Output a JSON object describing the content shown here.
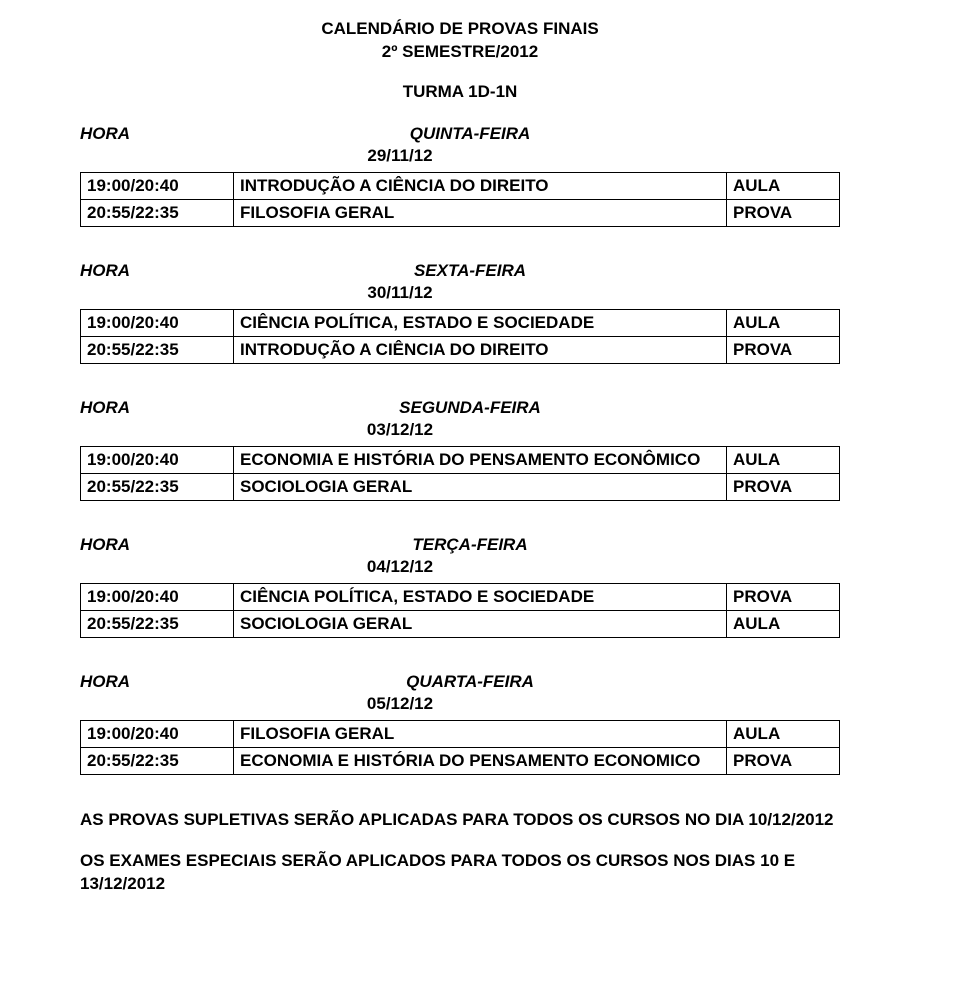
{
  "header": {
    "title_line1": "CALENDÁRIO DE PROVAS FINAIS",
    "title_line2": "2º SEMESTRE/2012",
    "turma": "TURMA 1D-1N"
  },
  "labels": {
    "hora": "HORA"
  },
  "blocks": [
    {
      "day_label": "QUINTA-FEIRA",
      "date": "29/11/12",
      "rows": [
        {
          "time": "19:00/20:40",
          "subject": "INTRODUÇÃO A CIÊNCIA DO DIREITO",
          "kind": "AULA"
        },
        {
          "time": "20:55/22:35",
          "subject": "FILOSOFIA GERAL",
          "kind": "PROVA"
        }
      ]
    },
    {
      "day_label": "SEXTA-FEIRA",
      "date": "30/11/12",
      "rows": [
        {
          "time": "19:00/20:40",
          "subject": "CIÊNCIA POLÍTICA, ESTADO E SOCIEDADE",
          "kind": "AULA"
        },
        {
          "time": "20:55/22:35",
          "subject": "INTRODUÇÃO A CIÊNCIA DO DIREITO",
          "kind": "PROVA"
        }
      ]
    },
    {
      "day_label": "SEGUNDA-FEIRA",
      "date": "03/12/12",
      "rows": [
        {
          "time": "19:00/20:40",
          "subject": "ECONOMIA E HISTÓRIA DO PENSAMENTO ECONÔMICO",
          "kind": "AULA"
        },
        {
          "time": "20:55/22:35",
          "subject": "SOCIOLOGIA GERAL",
          "kind": "PROVA"
        }
      ]
    },
    {
      "day_label": "TERÇA-FEIRA",
      "date": "04/12/12",
      "rows": [
        {
          "time": "19:00/20:40",
          "subject": "CIÊNCIA POLÍTICA, ESTADO E SOCIEDADE",
          "kind": "PROVA"
        },
        {
          "time": "20:55/22:35",
          "subject": "SOCIOLOGIA GERAL",
          "kind": "AULA"
        }
      ]
    },
    {
      "day_label": "QUARTA-FEIRA",
      "date": "05/12/12",
      "rows": [
        {
          "time": "19:00/20:40",
          "subject": "FILOSOFIA GERAL",
          "kind": "AULA"
        },
        {
          "time": "20:55/22:35",
          "subject": "ECONOMIA E HISTÓRIA DO PENSAMENTO ECONOMICO",
          "kind": "PROVA"
        }
      ]
    }
  ],
  "footer": {
    "line1": "AS PROVAS SUPLETIVAS SERÃO APLICADAS PARA TODOS OS CURSOS NO DIA 10/12/2012",
    "line2": "OS EXAMES ESPECIAIS SERÃO APLICADOS PARA TODOS OS CURSOS NOS DIAS 10 E 13/12/2012"
  }
}
